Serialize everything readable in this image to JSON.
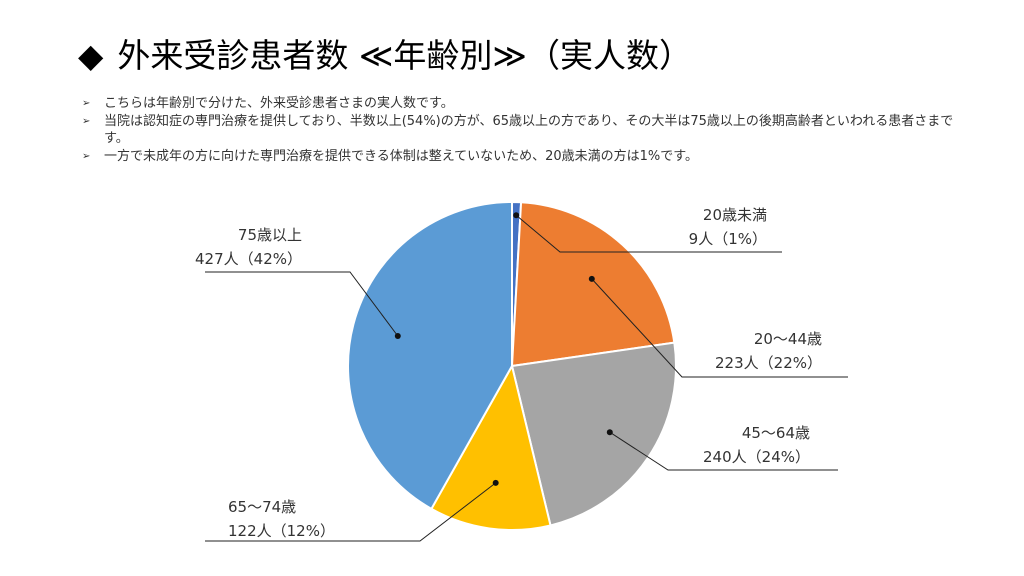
{
  "title": "外来受診患者数 ≪年齢別≫（実人数）",
  "title_marker": "◆",
  "bullet_marker": "➢",
  "bullets": [
    "こちらは年齢別で分けた、外来受診患者さまの実人数です。",
    "当院は認知症の専門治療を提供しており、半数以上(54%)の方が、65歳以上の方であり、その大半は75歳以上の後期高齢者といわれる患者さまです。",
    "一方で未成年の方に向けた専門治療を提供できる体制は整えていないため、20歳未満の方は1%です。"
  ],
  "chart_data": {
    "type": "pie",
    "start_angle_deg": 0,
    "direction": "clockwise",
    "slices": [
      {
        "name": "20歳未満",
        "value": 9,
        "percent": "1%",
        "value_label": "9人（1%）",
        "color": "#4472C4"
      },
      {
        "name": "20～44歳",
        "value": 223,
        "percent": "22%",
        "value_label": "223人（22%）",
        "color": "#ED7D31"
      },
      {
        "name": "45～64歳",
        "value": 240,
        "percent": "24%",
        "value_label": "240人（24%）",
        "color": "#A5A5A5"
      },
      {
        "name": "65～74歳",
        "value": 122,
        "percent": "12%",
        "value_label": "122人（12%）",
        "color": "#FFC000"
      },
      {
        "name": "75歳以上",
        "value": 427,
        "percent": "42%",
        "value_label": "427人（42%）",
        "color": "#5B9BD5"
      }
    ]
  }
}
